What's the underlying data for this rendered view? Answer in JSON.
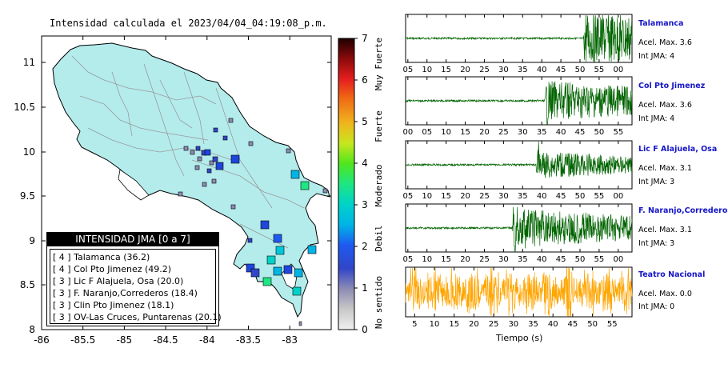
{
  "map": {
    "title": "Intensidad calculada el 2023/04/04_04:19:08_p.m.",
    "x_ticks": [
      "-86",
      "-85.5",
      "-85",
      "-84.5",
      "-84",
      "-83.5",
      "-83"
    ],
    "y_ticks": [
      "11",
      "10.5",
      "10",
      "9.5",
      "9",
      "8.5",
      "8"
    ],
    "land_color": "#b4ecec",
    "sea_color": "#ffffff"
  },
  "colorbar": {
    "ticks": [
      "0",
      "1",
      "2",
      "3",
      "4",
      "5",
      "6",
      "7"
    ],
    "labels": [
      "No sentido",
      "Debil",
      "Moderado",
      "Fuerte",
      "Muy Fuerte"
    ]
  },
  "legend": {
    "title": "INTENSIDAD JMA [0 a 7]",
    "items": [
      "[ 4 ]  Talamanca (36.2)",
      "[ 4 ]  Col Pto Jimenez (49.2)",
      "[ 3 ]  Lic F Alajuela, Osa (20.0)",
      "[ 3 ]  F. Naranjo,Correderos (18.4)",
      "[ 3 ]  Clin Pto Jimenez (18.1)",
      "[ 3 ]  OV-Las Cruces, Puntarenas (20.1)"
    ]
  },
  "traces": [
    {
      "name": "Talamanca",
      "acel": "Acel. Max. 3.6",
      "int": "Int JMA: 4",
      "color": "#006400",
      "ticks": [
        "05",
        "10",
        "15",
        "20",
        "25",
        "30",
        "35",
        "40",
        "45",
        "50",
        "55",
        "00"
      ]
    },
    {
      "name": "Col Pto Jimenez",
      "acel": "Acel. Max. 3.6",
      "int": "Int JMA: 4",
      "color": "#006400",
      "ticks": [
        "00",
        "05",
        "10",
        "15",
        "20",
        "25",
        "30",
        "35",
        "40",
        "45",
        "50",
        "55"
      ]
    },
    {
      "name": "Lic F Alajuela, Osa",
      "acel": "Acel. Max. 3.1",
      "int": "Int JMA: 3",
      "color": "#006400",
      "ticks": [
        "05",
        "10",
        "15",
        "20",
        "25",
        "30",
        "35",
        "40",
        "45",
        "50",
        "55",
        "00"
      ]
    },
    {
      "name": "F. Naranjo,Correderos",
      "acel": "Acel. Max. 3.1",
      "int": "Int JMA: 3",
      "color": "#006400",
      "ticks": [
        "05",
        "10",
        "15",
        "20",
        "25",
        "30",
        "35",
        "40",
        "45",
        "50",
        "55",
        "00"
      ]
    },
    {
      "name": "Teatro Nacional",
      "acel": "Acel. Max. 0.0",
      "int": "Int JMA: 0",
      "color": "#ffa500",
      "ticks": [
        "5",
        "10",
        "15",
        "20",
        "25",
        "30",
        "35",
        "40",
        "45",
        "50",
        "55"
      ]
    }
  ],
  "x_axis_title": "Tiempo (s)"
}
